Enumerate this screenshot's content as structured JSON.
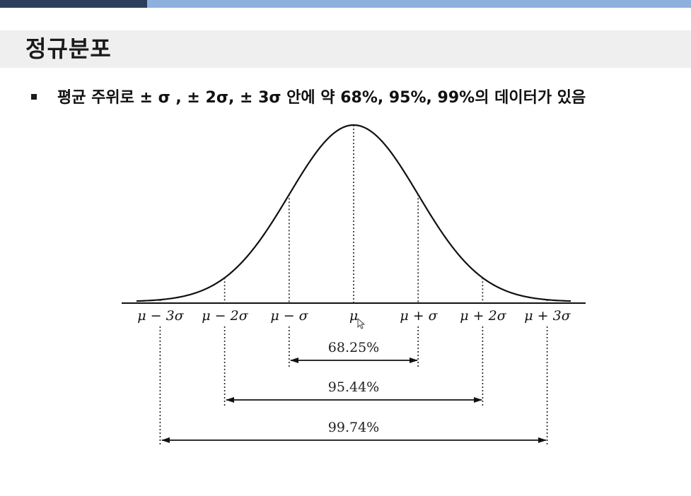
{
  "slide": {
    "title": "정규분포",
    "bullet": "평균 주위로 ± σ , ± 2σ, ± 3σ 안에 약 68%, 95%, 99%의 데이터가 있음"
  },
  "diagram": {
    "axis_labels": [
      "μ − 3σ",
      "μ − 2σ",
      "μ − σ",
      "μ",
      "μ + σ",
      "μ + 2σ",
      "μ + 3σ"
    ],
    "ranges": [
      {
        "label": "68.25%",
        "from": "μ − σ",
        "to": "μ + σ"
      },
      {
        "label": "95.44%",
        "from": "μ − 2σ",
        "to": "μ + 2σ"
      },
      {
        "label": "99.74%",
        "from": "μ − 3σ",
        "to": "μ + 3σ"
      }
    ]
  }
}
